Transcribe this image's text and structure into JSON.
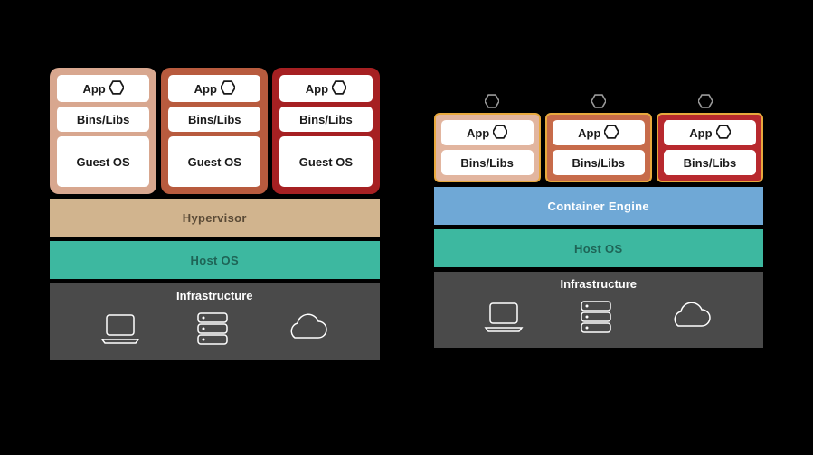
{
  "labels": {
    "app": "App",
    "bins": "Bins/Libs",
    "guest": "Guest OS",
    "hypervisor": "Hypervisor",
    "container_engine": "Container Engine",
    "host_os": "Host OS",
    "infrastructure": "Infrastructure"
  },
  "colors": {
    "bg": "#000000",
    "vm_fill": [
      "#d8a78f",
      "#b85b3e",
      "#a62022"
    ],
    "ct_fill": [
      "#e2b59f",
      "#c76b4a",
      "#b8292e"
    ],
    "ct_border": "#e8a93d",
    "hypervisor_bg": "#d1b48e",
    "hypervisor_text": "#5a4a36",
    "container_engine_bg": "#6fa8d6",
    "container_engine_text": "#ffffff",
    "host_os_bg": "#3db8a0",
    "host_os_text": "#1e6456",
    "infra_bg": "#4a4a4a",
    "infra_text": "#ffffff",
    "hex_stroke": "#1a1a1a",
    "small_hex_stroke": "#9a9a9a",
    "icon_stroke": "#ffffff"
  },
  "layout": {
    "stack_width": 365,
    "vm_count": 3,
    "ct_count": 3
  }
}
